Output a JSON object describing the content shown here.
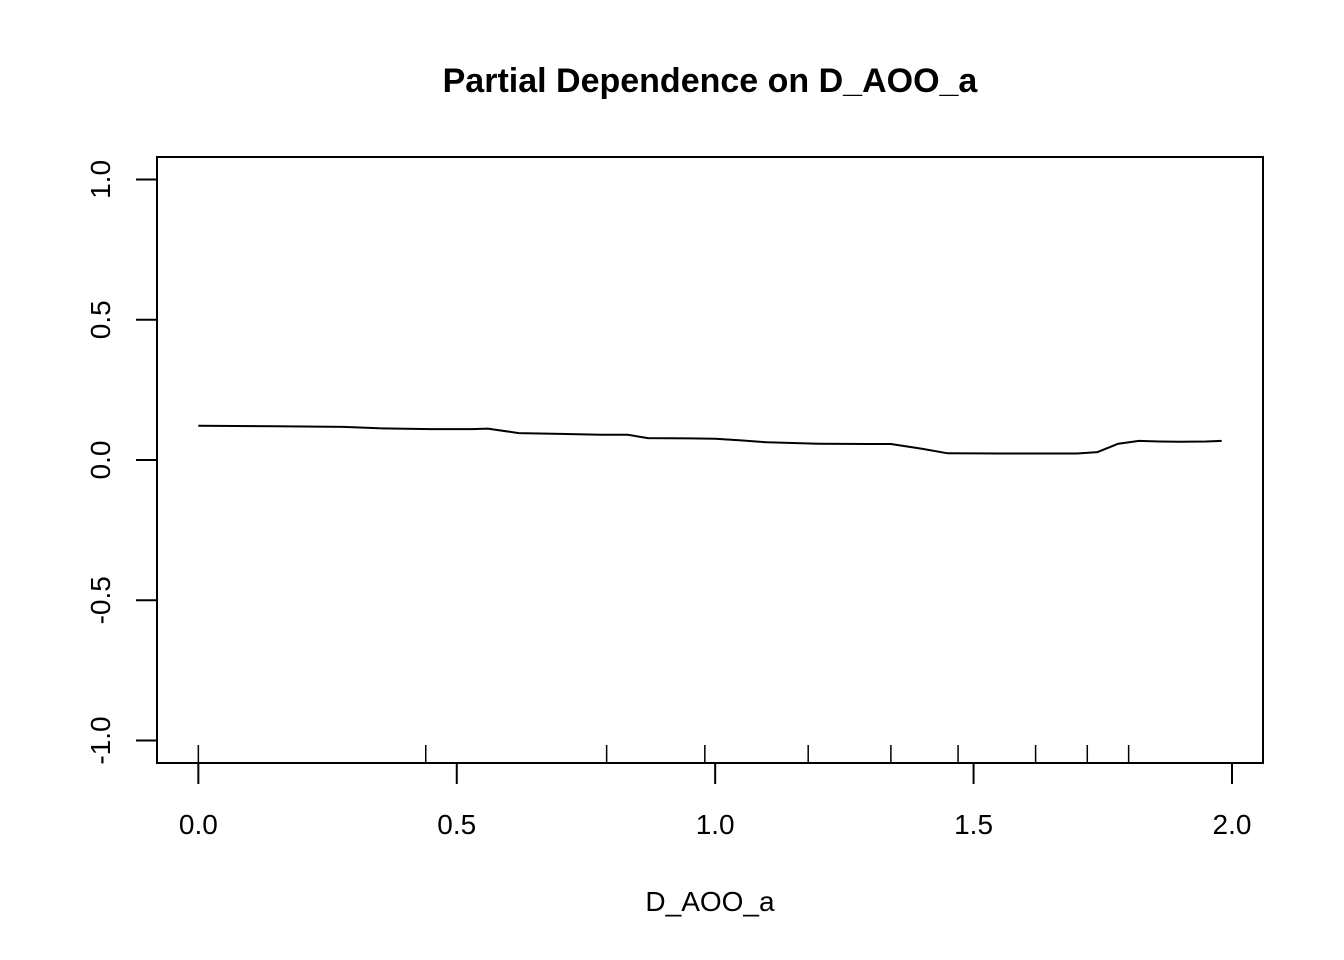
{
  "chart_data": {
    "type": "line",
    "title": "Partial Dependence on D_AOO_a",
    "xlabel": "D_AOO_a",
    "ylabel": "",
    "xlim": [
      -0.08,
      2.06
    ],
    "ylim": [
      -1.08,
      1.08
    ],
    "x_ticks": [
      0.0,
      0.5,
      1.0,
      1.5,
      2.0
    ],
    "x_tick_labels": [
      "0.0",
      "0.5",
      "1.0",
      "1.5",
      "2.0"
    ],
    "y_ticks": [
      -1.0,
      -0.5,
      0.0,
      0.5,
      1.0
    ],
    "y_tick_labels": [
      "-1.0",
      "-0.5",
      "0.0",
      "0.5",
      "1.0"
    ],
    "grid": false,
    "legend": "none",
    "line_color": "#000000",
    "series": [
      {
        "x": [
          0.0,
          0.15,
          0.28,
          0.35,
          0.45,
          0.53,
          0.56,
          0.62,
          0.7,
          0.78,
          0.83,
          0.87,
          0.95,
          1.0,
          1.05,
          1.1,
          1.2,
          1.3,
          1.34,
          1.4,
          1.45,
          1.55,
          1.65,
          1.7,
          1.74,
          1.78,
          1.82,
          1.86,
          1.9,
          1.95,
          1.98
        ],
        "y": [
          0.122,
          0.12,
          0.118,
          0.113,
          0.11,
          0.11,
          0.112,
          0.096,
          0.093,
          0.09,
          0.09,
          0.078,
          0.077,
          0.076,
          0.07,
          0.063,
          0.058,
          0.057,
          0.057,
          0.04,
          0.024,
          0.023,
          0.023,
          0.023,
          0.028,
          0.058,
          0.068,
          0.066,
          0.065,
          0.066,
          0.068
        ]
      }
    ],
    "rug": [
      0.0,
      0.44,
      0.79,
      0.98,
      1.18,
      1.34,
      1.47,
      1.62,
      1.72,
      1.8
    ]
  }
}
